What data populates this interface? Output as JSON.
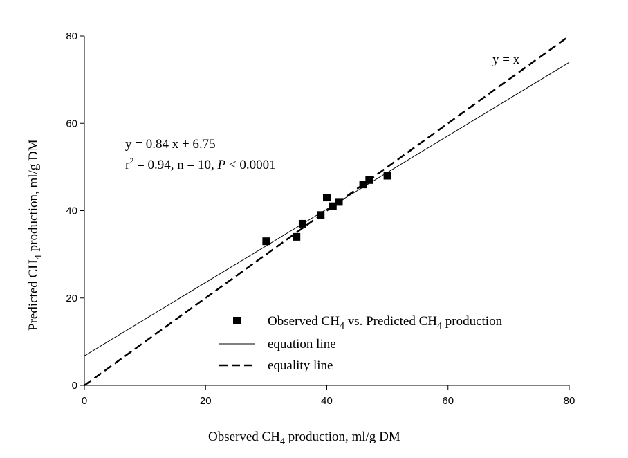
{
  "chart_data": {
    "type": "scatter",
    "xlim": [
      0,
      80
    ],
    "ylim": [
      0,
      80
    ],
    "xticks": [
      "0",
      "20",
      "40",
      "60",
      "80"
    ],
    "yticks": [
      "0",
      "20",
      "40",
      "60",
      "80"
    ],
    "xlabel": {
      "pre": "Observed CH",
      "sub": "4",
      "post": " production, ml/g DM"
    },
    "ylabel": {
      "pre": "Predicted CH",
      "sub": "4",
      "post": " production, ml/g DM"
    },
    "points": [
      {
        "x": 30,
        "y": 33
      },
      {
        "x": 35,
        "y": 34
      },
      {
        "x": 36,
        "y": 37
      },
      {
        "x": 39,
        "y": 39
      },
      {
        "x": 40,
        "y": 43
      },
      {
        "x": 41,
        "y": 41
      },
      {
        "x": 42,
        "y": 42
      },
      {
        "x": 46,
        "y": 46
      },
      {
        "x": 47,
        "y": 47
      },
      {
        "x": 50,
        "y": 48
      }
    ],
    "regression": {
      "slope": 0.84,
      "intercept": 6.75
    },
    "equality": {
      "slope": 1,
      "intercept": 0
    },
    "annotations": {
      "equation": "y = 0.84 x + 6.75",
      "stats_r": "r",
      "stats_sup": "2",
      "stats_mid": " = 0.94, n = 10, ",
      "stats_p": "P",
      "stats_end": " < 0.0001",
      "equality_label": "y = x"
    },
    "legend": {
      "placement": "bottom-right",
      "scatter": {
        "pre": "Observed CH",
        "sub1": "4",
        "mid": " vs. Predicted CH",
        "sub2": "4",
        "post": " production"
      },
      "equation_line": "equation line",
      "equality_line": "equality line"
    },
    "grid": false
  }
}
